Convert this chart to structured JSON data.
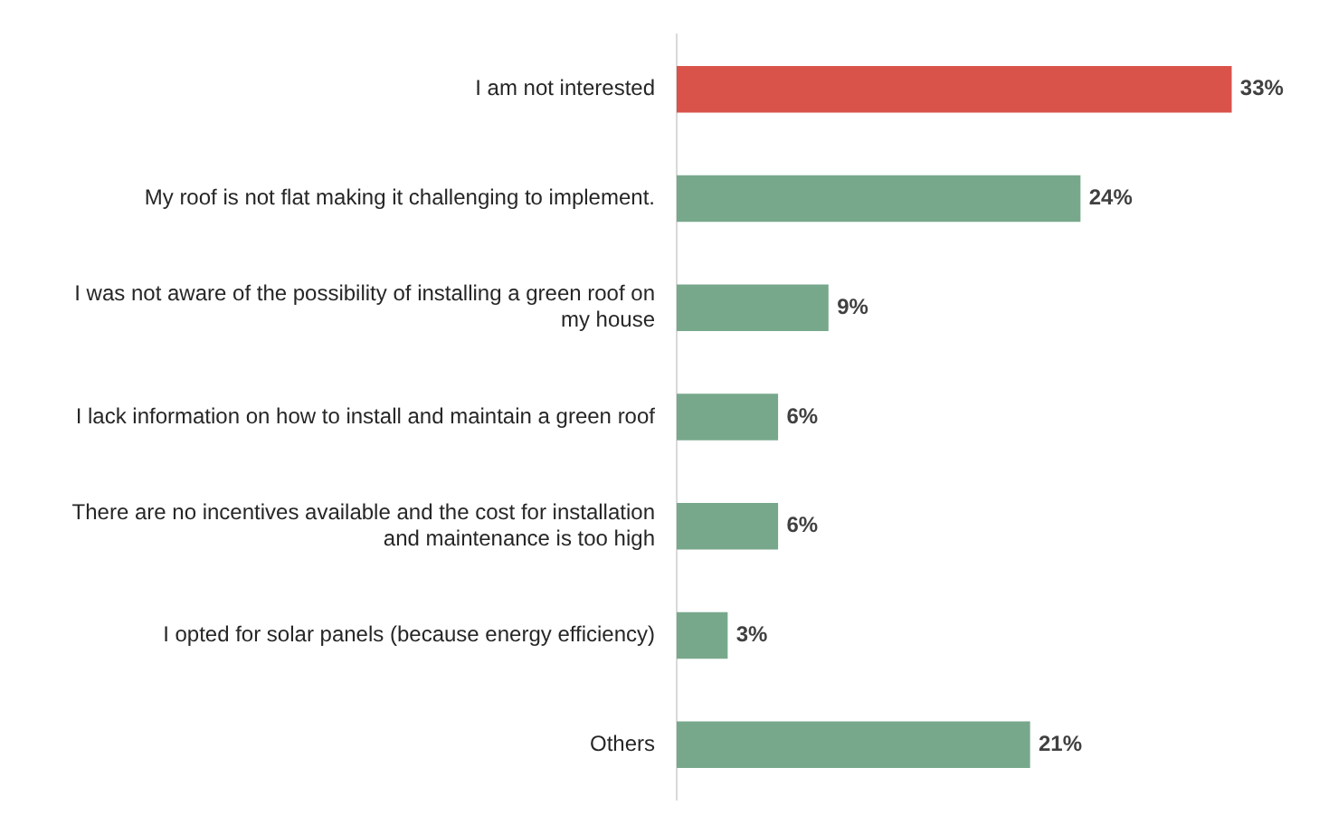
{
  "chart_data": {
    "type": "bar",
    "orientation": "horizontal",
    "categories": [
      "I am not interested",
      "My roof is not flat making it challenging to implement.",
      "I was not aware of the possibility of installing a green roof on my house",
      "I lack information on how to install and maintain a green roof",
      "There are no incentives available and the cost for installation and maintenance is too high",
      "I opted for solar panels (because energy efficiency)",
      "Others"
    ],
    "values": [
      33,
      24,
      9,
      6,
      6,
      3,
      21
    ],
    "value_labels": [
      "33%",
      "24%",
      "9%",
      "6%",
      "6%",
      "3%",
      "21%"
    ],
    "colors": [
      "#d9534a",
      "#78a88c",
      "#78a88c",
      "#78a88c",
      "#78a88c",
      "#78a88c",
      "#78a88c"
    ],
    "grid": false,
    "legend": false
  }
}
